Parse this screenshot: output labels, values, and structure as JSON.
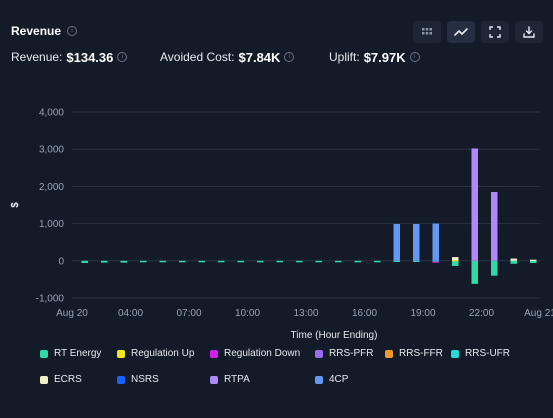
{
  "header": {
    "title": "Revenue",
    "icons": [
      "grid-icon",
      "line-chart-icon",
      "expand-icon",
      "download-icon"
    ]
  },
  "metrics": {
    "revenue_label": "Revenue:",
    "revenue_value": "$134.36",
    "avoided_label": "Avoided Cost:",
    "avoided_value": "$7.84K",
    "uplift_label": "Uplift:",
    "uplift_value": "$7.97K"
  },
  "colors": {
    "background": "#131a28",
    "rt_energy": "#2fd9a8",
    "regulation_up": "#f5e61e",
    "regulation_down": "#d21ef0",
    "rrs_pfr": "#9a6cf5",
    "rrs_ffr": "#f5962a",
    "rrs_ufr": "#28d9d9",
    "ecrs": "#f3f0c9",
    "nsrs": "#1763ff",
    "rtpa": "#b088f9",
    "cp4": "#6398f5"
  },
  "chart_data": {
    "type": "bar",
    "stacked": true,
    "xlabel": "Time (Hour Ending)",
    "ylabel": "$",
    "ylim": [
      -1000,
      4000
    ],
    "yticks": [
      "4,000",
      "3,000",
      "2,000",
      "1,000",
      "0",
      "-1,000"
    ],
    "yticks_values": [
      4000,
      3000,
      2000,
      1000,
      0,
      -1000
    ],
    "xticks": [
      "Aug 20",
      "04:00",
      "07:00",
      "10:00",
      "13:00",
      "16:00",
      "19:00",
      "22:00",
      "Aug 21"
    ],
    "xticks_hours": [
      0,
      3,
      6,
      9,
      12,
      15,
      18,
      21,
      24
    ],
    "hours": [
      1,
      2,
      3,
      4,
      5,
      6,
      7,
      8,
      9,
      10,
      11,
      12,
      13,
      14,
      15,
      16,
      17,
      18,
      19,
      20,
      21,
      22,
      23,
      24
    ],
    "grid": true,
    "series": [
      {
        "name": "RT Energy",
        "color_key": "rt_energy",
        "values": [
          -60,
          -50,
          -50,
          -40,
          -40,
          -40,
          -40,
          -40,
          -40,
          -40,
          -40,
          -40,
          -40,
          -40,
          -40,
          -40,
          -30,
          -20,
          -20,
          -140,
          -620,
          -400,
          -80,
          -60
        ]
      },
      {
        "name": "Regulation Up",
        "color_key": "regulation_up",
        "values": [
          0,
          0,
          0,
          0,
          0,
          0,
          0,
          0,
          0,
          0,
          0,
          0,
          0,
          0,
          0,
          0,
          0,
          0,
          0,
          20,
          0,
          0,
          0,
          0
        ]
      },
      {
        "name": "Regulation Down",
        "color_key": "regulation_down",
        "values": [
          0,
          0,
          0,
          0,
          0,
          0,
          0,
          0,
          0,
          0,
          0,
          0,
          0,
          0,
          0,
          0,
          0,
          0,
          -10,
          0,
          0,
          0,
          0,
          0
        ]
      },
      {
        "name": "RRS-PFR",
        "color_key": "rrs_pfr",
        "values": [
          0,
          0,
          0,
          0,
          0,
          0,
          0,
          0,
          0,
          0,
          0,
          0,
          0,
          0,
          0,
          0,
          0,
          0,
          0,
          0,
          0,
          0,
          0,
          0
        ]
      },
      {
        "name": "RRS-FFR",
        "color_key": "rrs_ffr",
        "values": [
          0,
          0,
          0,
          0,
          0,
          0,
          0,
          0,
          0,
          0,
          0,
          0,
          0,
          0,
          0,
          0,
          0,
          0,
          0,
          0,
          0,
          0,
          0,
          0
        ]
      },
      {
        "name": "RRS-UFR",
        "color_key": "rrs_ufr",
        "values": [
          0,
          0,
          0,
          0,
          0,
          0,
          0,
          0,
          0,
          0,
          0,
          0,
          0,
          0,
          0,
          0,
          0,
          0,
          0,
          0,
          0,
          0,
          0,
          0
        ]
      },
      {
        "name": "ECRS",
        "color_key": "ecrs",
        "values": [
          0,
          0,
          0,
          0,
          0,
          0,
          0,
          0,
          0,
          0,
          0,
          0,
          0,
          0,
          0,
          0,
          0,
          0,
          0,
          80,
          0,
          0,
          60,
          30
        ]
      },
      {
        "name": "NSRS",
        "color_key": "nsrs",
        "values": [
          0,
          0,
          0,
          0,
          0,
          0,
          0,
          0,
          0,
          0,
          0,
          0,
          0,
          0,
          0,
          0,
          0,
          0,
          0,
          0,
          0,
          0,
          0,
          0
        ]
      },
      {
        "name": "RTPA",
        "color_key": "rtpa",
        "values": [
          0,
          0,
          0,
          0,
          0,
          0,
          0,
          0,
          0,
          0,
          0,
          0,
          0,
          0,
          0,
          0,
          0,
          0,
          0,
          0,
          3020,
          1850,
          0,
          0
        ]
      },
      {
        "name": "4CP",
        "color_key": "cp4",
        "values": [
          0,
          0,
          0,
          0,
          0,
          0,
          0,
          0,
          0,
          0,
          0,
          0,
          0,
          0,
          0,
          0,
          990,
          990,
          1000,
          0,
          0,
          0,
          0,
          0
        ]
      }
    ]
  }
}
